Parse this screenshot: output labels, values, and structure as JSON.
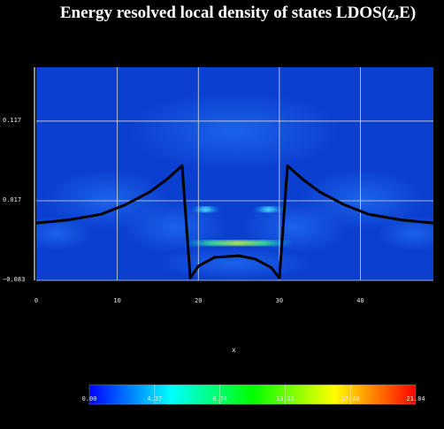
{
  "chart_data": {
    "type": "heatmap",
    "title": "Energy resolved local density of states LDOS(z,E)",
    "xlabel": "x",
    "ylabel": "",
    "xlim": [
      0,
      49
    ],
    "ylim": [
      -0.083,
      0.1847
    ],
    "x_ticks": [
      "0",
      "10",
      "20",
      "30",
      "40"
    ],
    "x_tick_values": [
      0,
      10,
      20,
      30,
      40
    ],
    "y_ticks": [
      "0.117",
      "0.017",
      "−0.083"
    ],
    "y_tick_values": [
      0.117,
      0.017,
      -0.083
    ],
    "grid": true,
    "colorbar": {
      "ticks": [
        "0.00",
        "4.37",
        "8.74",
        "13.11",
        "17.48",
        "21.84"
      ],
      "min": 0.0,
      "max": 21.84,
      "colors": [
        "#0000ff",
        "#00ffff",
        "#00ff00",
        "#ffff00",
        "#ff0000"
      ]
    },
    "bright_bands": [
      {
        "energy": 0.006,
        "x_from": 19.2,
        "x_to": 22.6,
        "level": 7.0
      },
      {
        "energy": 0.006,
        "x_from": 26.8,
        "x_to": 30.5,
        "level": 7.0
      },
      {
        "energy": -0.036,
        "x_from": 18.2,
        "x_to": 31.6,
        "level": 12.0
      }
    ],
    "potential_profile": {
      "x": [
        0,
        4,
        8,
        11,
        14,
        16,
        18,
        19,
        20,
        22,
        25,
        27,
        29,
        30,
        31,
        33,
        35,
        38,
        41,
        45,
        49
      ],
      "y": [
        -0.011,
        -0.007,
        0.0,
        0.012,
        0.028,
        0.043,
        0.061,
        -0.08,
        -0.065,
        -0.054,
        -0.052,
        -0.056,
        -0.067,
        -0.08,
        0.061,
        0.043,
        0.028,
        0.012,
        0.0,
        -0.007,
        -0.011
      ]
    }
  }
}
